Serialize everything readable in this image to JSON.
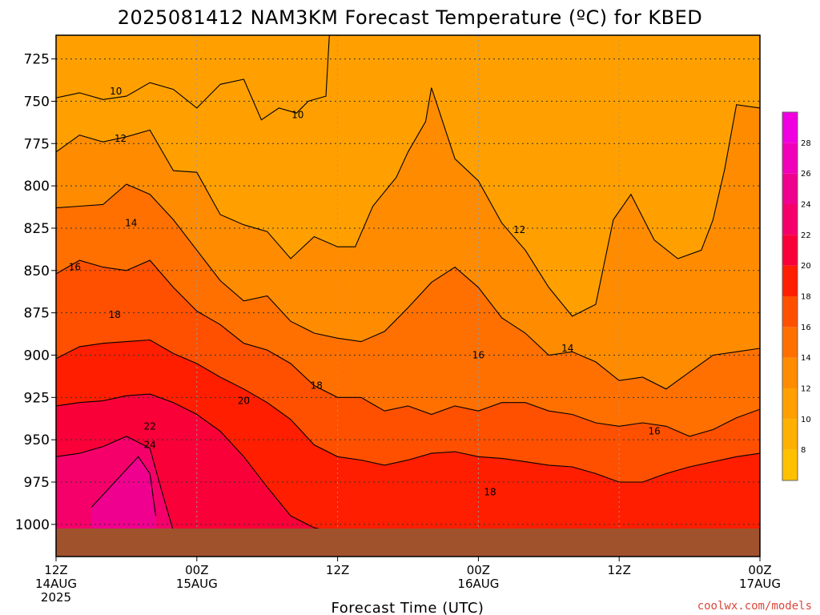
{
  "title": "2025081412 NAM3KM Forecast Temperature (ºC) for KBED",
  "credit": "coolwx.com/models",
  "chart_data": {
    "type": "heatmap",
    "title": "2025081412 NAM3KM Forecast Temperature (ºC) for KBED",
    "xlabel": "Forecast Time (UTC)",
    "ylabel": "",
    "x_ticks": [
      {
        "hours": 0,
        "lines": [
          "12Z",
          "14AUG",
          "2025"
        ]
      },
      {
        "hours": 12,
        "lines": [
          "00Z",
          "15AUG"
        ]
      },
      {
        "hours": 24,
        "lines": [
          "12Z"
        ]
      },
      {
        "hours": 36,
        "lines": [
          "00Z",
          "16AUG"
        ]
      },
      {
        "hours": 48,
        "lines": [
          "12Z"
        ]
      },
      {
        "hours": 60,
        "lines": [
          "00Z",
          "17AUG"
        ]
      }
    ],
    "xlim": [
      0,
      60
    ],
    "y_ticks": [
      725,
      750,
      775,
      800,
      825,
      850,
      875,
      900,
      925,
      950,
      975,
      1000
    ],
    "ylim": [
      1019,
      711
    ],
    "colorbar": {
      "ticks": [
        8,
        10,
        12,
        14,
        16,
        18,
        20,
        22,
        24,
        26,
        28
      ],
      "range": [
        6,
        30
      ],
      "colors": [
        {
          "from": 6,
          "to": 8,
          "color": "#ffc000"
        },
        {
          "from": 8,
          "to": 10,
          "color": "#ffb000"
        },
        {
          "from": 10,
          "to": 12,
          "color": "#ffa000"
        },
        {
          "from": 12,
          "to": 14,
          "color": "#ff8c00"
        },
        {
          "from": 14,
          "to": 16,
          "color": "#ff7000"
        },
        {
          "from": 16,
          "to": 18,
          "color": "#ff5000"
        },
        {
          "from": 18,
          "to": 20,
          "color": "#ff1e00"
        },
        {
          "from": 20,
          "to": 22,
          "color": "#fa0038"
        },
        {
          "from": 22,
          "to": 24,
          "color": "#f5006a"
        },
        {
          "from": 24,
          "to": 26,
          "color": "#f0008e"
        },
        {
          "from": 26,
          "to": 28,
          "color": "#f000b8"
        },
        {
          "from": 28,
          "to": 30,
          "color": "#f000e0"
        }
      ]
    },
    "contours": [
      {
        "level": 10,
        "points": [
          [
            0,
            748
          ],
          [
            2,
            745
          ],
          [
            4,
            749
          ],
          [
            6,
            747
          ],
          [
            8,
            739
          ],
          [
            10,
            743
          ],
          [
            12,
            754
          ],
          [
            14,
            740
          ],
          [
            16,
            737
          ],
          [
            17.5,
            761
          ],
          [
            19,
            754
          ],
          [
            20.5,
            757
          ],
          [
            21.5,
            750
          ],
          [
            23,
            747
          ],
          [
            23.3,
            711
          ]
        ]
      },
      {
        "level": 12,
        "points": [
          [
            0,
            780
          ],
          [
            2,
            770
          ],
          [
            4,
            774
          ],
          [
            6,
            771
          ],
          [
            8,
            767
          ],
          [
            10,
            791
          ],
          [
            12,
            792
          ],
          [
            14,
            817
          ],
          [
            16,
            823
          ],
          [
            18,
            827
          ],
          [
            20,
            843
          ],
          [
            22,
            830
          ],
          [
            24,
            836
          ],
          [
            25.5,
            836
          ],
          [
            27,
            812
          ],
          [
            29,
            795
          ],
          [
            30,
            780
          ],
          [
            31.5,
            762
          ],
          [
            32,
            742
          ],
          [
            34,
            784
          ],
          [
            36,
            797
          ],
          [
            38,
            822
          ],
          [
            40,
            838
          ],
          [
            42,
            860
          ],
          [
            44,
            877
          ],
          [
            46,
            870
          ],
          [
            47.5,
            820
          ],
          [
            49,
            805
          ],
          [
            51,
            832
          ],
          [
            53,
            843
          ],
          [
            55,
            838
          ],
          [
            56,
            820
          ],
          [
            57,
            790
          ],
          [
            58,
            752
          ],
          [
            60,
            754
          ]
        ]
      },
      {
        "level": 14,
        "points": [
          [
            0,
            813
          ],
          [
            2,
            812
          ],
          [
            4,
            811
          ],
          [
            6,
            799
          ],
          [
            8,
            805
          ],
          [
            10,
            820
          ],
          [
            12,
            838
          ],
          [
            14,
            856
          ],
          [
            16,
            868
          ],
          [
            18,
            865
          ],
          [
            20,
            880
          ],
          [
            22,
            887
          ],
          [
            24,
            890
          ],
          [
            26,
            892
          ],
          [
            28,
            886
          ],
          [
            30,
            872
          ],
          [
            32,
            857
          ],
          [
            34,
            848
          ],
          [
            36,
            860
          ],
          [
            38,
            878
          ],
          [
            40,
            887
          ],
          [
            42,
            900
          ],
          [
            44,
            898
          ],
          [
            46,
            904
          ],
          [
            48,
            915
          ],
          [
            50,
            913
          ],
          [
            52,
            920
          ],
          [
            54,
            910
          ],
          [
            56,
            900
          ],
          [
            58,
            898
          ],
          [
            60,
            896
          ]
        ]
      },
      {
        "level": 16,
        "points": [
          [
            0,
            852
          ],
          [
            2,
            844
          ],
          [
            4,
            848
          ],
          [
            6,
            850
          ],
          [
            8,
            844
          ],
          [
            10,
            860
          ],
          [
            12,
            874
          ],
          [
            14,
            882
          ],
          [
            16,
            893
          ],
          [
            18,
            897
          ],
          [
            20,
            905
          ],
          [
            22,
            918
          ],
          [
            24,
            925
          ],
          [
            26,
            925
          ],
          [
            28,
            933
          ],
          [
            30,
            930
          ],
          [
            32,
            935
          ],
          [
            34,
            930
          ],
          [
            36,
            933
          ],
          [
            38,
            928
          ],
          [
            40,
            928
          ],
          [
            42,
            933
          ],
          [
            44,
            935
          ],
          [
            46,
            940
          ],
          [
            48,
            942
          ],
          [
            50,
            940
          ],
          [
            52,
            942
          ],
          [
            54,
            948
          ],
          [
            56,
            944
          ],
          [
            58,
            937
          ],
          [
            60,
            932
          ]
        ]
      },
      {
        "level": 18,
        "points": [
          [
            0,
            902
          ],
          [
            2,
            895
          ],
          [
            4,
            893
          ],
          [
            6,
            892
          ],
          [
            8,
            891
          ],
          [
            10,
            899
          ],
          [
            12,
            905
          ],
          [
            14,
            913
          ],
          [
            16,
            920
          ],
          [
            18,
            928
          ],
          [
            20,
            938
          ],
          [
            22,
            953
          ],
          [
            24,
            960
          ],
          [
            26,
            962
          ],
          [
            28,
            965
          ],
          [
            30,
            962
          ],
          [
            32,
            958
          ],
          [
            34,
            957
          ],
          [
            36,
            960
          ],
          [
            38,
            961
          ],
          [
            40,
            963
          ],
          [
            42,
            965
          ],
          [
            44,
            966
          ],
          [
            46,
            970
          ],
          [
            48,
            975
          ],
          [
            50,
            975
          ],
          [
            52,
            970
          ],
          [
            54,
            966
          ],
          [
            56,
            963
          ],
          [
            58,
            960
          ],
          [
            60,
            958
          ]
        ]
      },
      {
        "level": 20,
        "points": [
          [
            0,
            930
          ],
          [
            2,
            928
          ],
          [
            4,
            927
          ],
          [
            6,
            924
          ],
          [
            8,
            923
          ],
          [
            10,
            928
          ],
          [
            12,
            935
          ],
          [
            14,
            945
          ],
          [
            16,
            960
          ],
          [
            18,
            978
          ],
          [
            20,
            995
          ],
          [
            22,
            1002
          ],
          [
            24,
            1005
          ],
          [
            26,
            1006
          ]
        ]
      },
      {
        "level": 22,
        "points": [
          [
            0,
            960
          ],
          [
            2,
            958
          ],
          [
            4,
            954
          ],
          [
            6,
            948
          ],
          [
            8,
            955
          ],
          [
            9,
            980
          ],
          [
            10,
            1004
          ]
        ]
      },
      {
        "level": 24,
        "points": [
          [
            3,
            990
          ],
          [
            5,
            975
          ],
          [
            7,
            960
          ],
          [
            8,
            970
          ],
          [
            8.5,
            995
          ]
        ]
      }
    ],
    "contour_labels": [
      {
        "text": "10",
        "x": 5.1,
        "y": 744
      },
      {
        "text": "10",
        "x": 20.6,
        "y": 758
      },
      {
        "text": "12",
        "x": 5.5,
        "y": 772
      },
      {
        "text": "14",
        "x": 6.4,
        "y": 822
      },
      {
        "text": "12",
        "x": 39.5,
        "y": 826
      },
      {
        "text": "16",
        "x": 1.6,
        "y": 848
      },
      {
        "text": "18",
        "x": 5.0,
        "y": 876
      },
      {
        "text": "16",
        "x": 36.0,
        "y": 900
      },
      {
        "text": "14",
        "x": 43.6,
        "y": 896
      },
      {
        "text": "18",
        "x": 22.2,
        "y": 918
      },
      {
        "text": "22",
        "x": 8.0,
        "y": 942
      },
      {
        "text": "20",
        "x": 16.0,
        "y": 927
      },
      {
        "text": "24",
        "x": 8.0,
        "y": 953
      },
      {
        "text": "16",
        "x": 51.0,
        "y": 945
      },
      {
        "text": "18",
        "x": 37.0,
        "y": 981
      }
    ],
    "grid": true
  }
}
